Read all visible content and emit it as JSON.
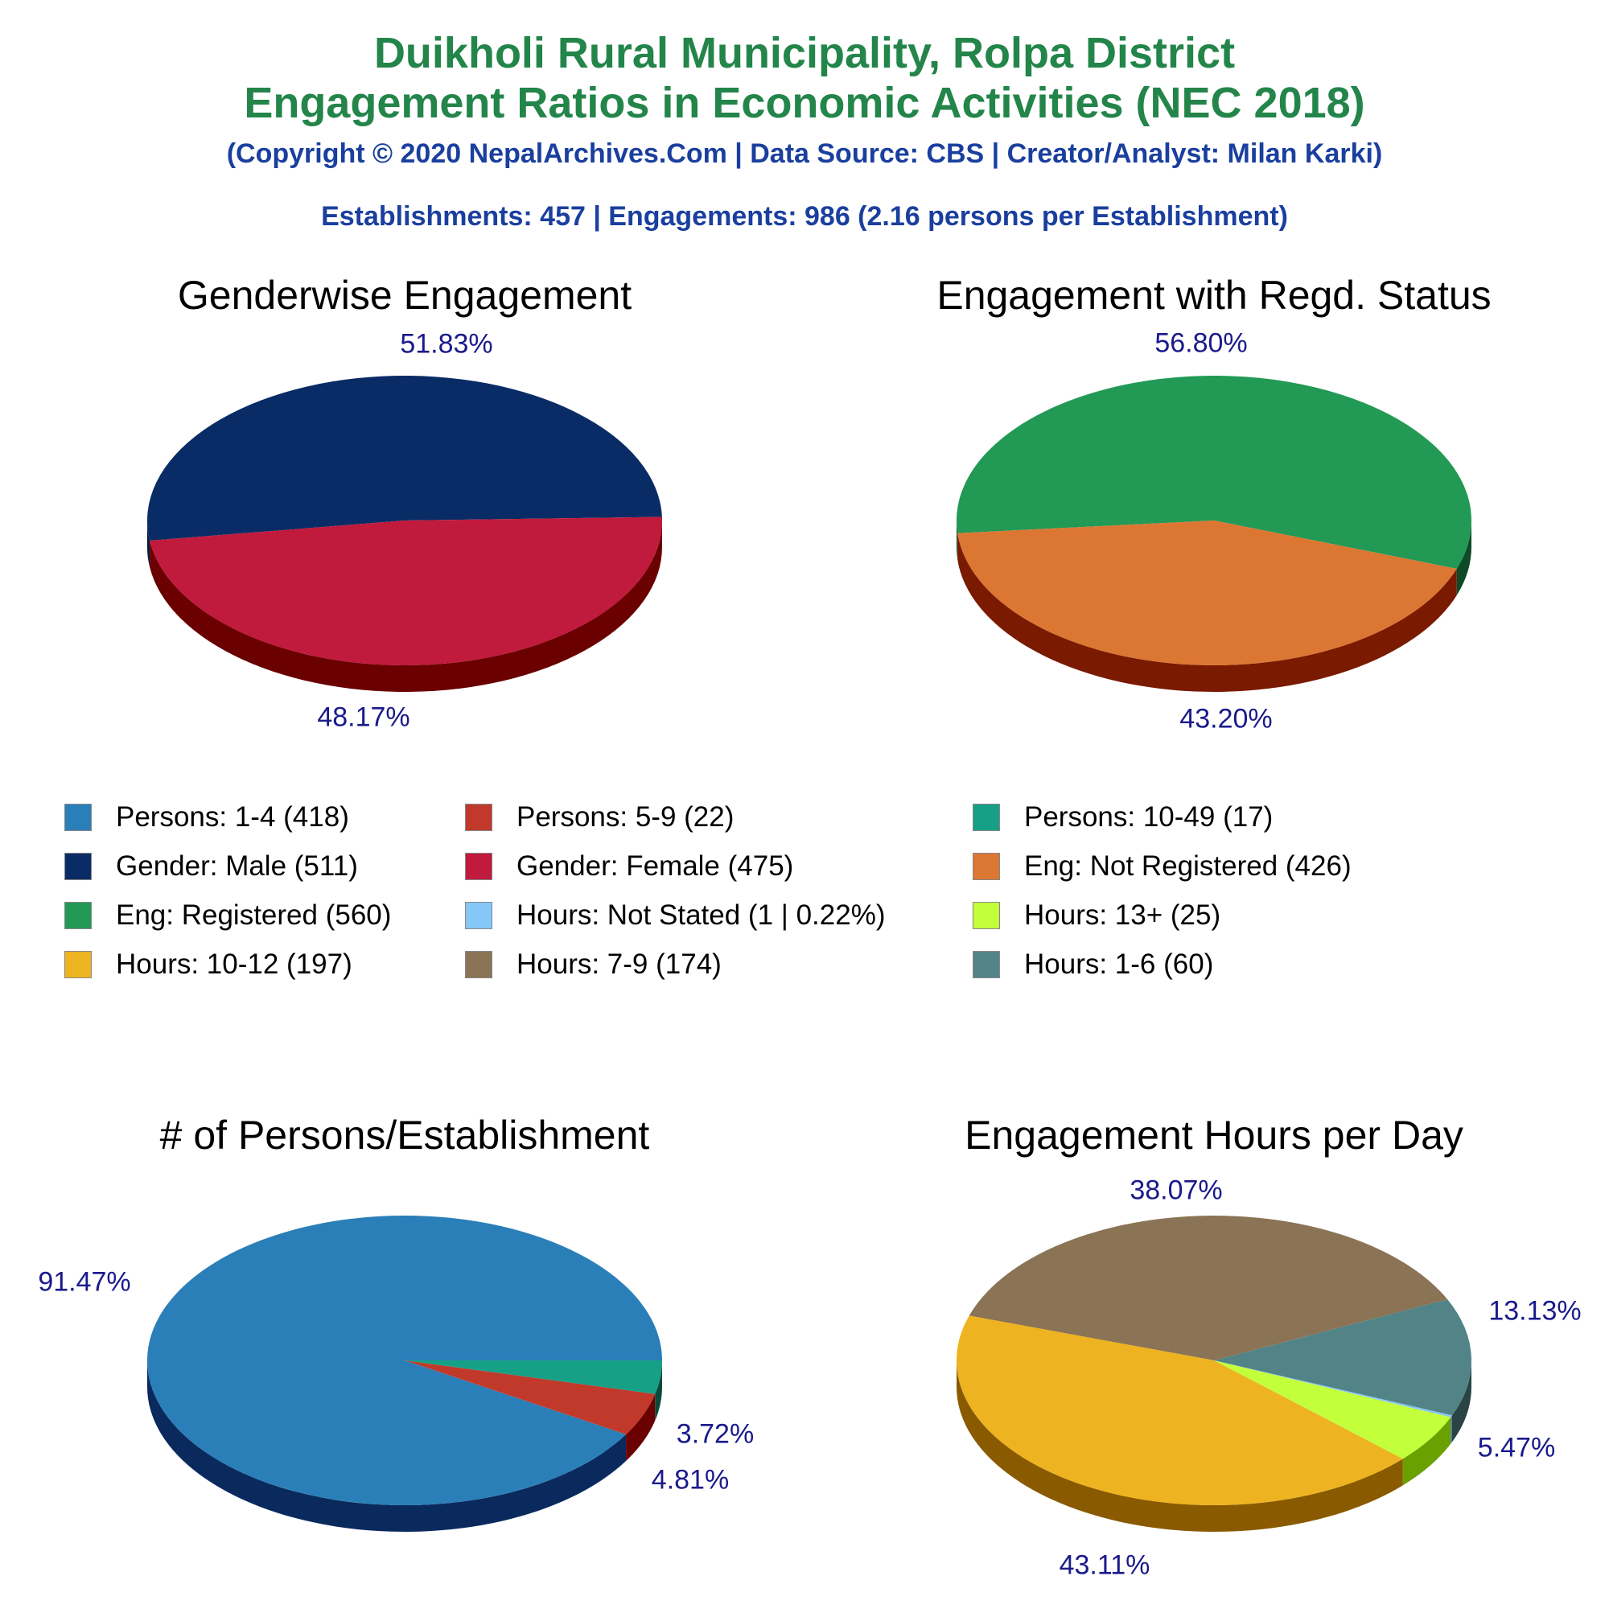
{
  "header": {
    "title_line1": "Duikholi Rural Municipality, Rolpa District",
    "title_line2": "Engagement Ratios in Economic Activities (NEC 2018)",
    "copyright": "(Copyright © 2020 NepalArchives.Com | Data Source: CBS | Creator/Analyst: Milan Karki)",
    "summary": "Establishments: 457 | Engagements: 986 (2.16 persons per Establishment)"
  },
  "legend": [
    {
      "label": "Persons: 1-4 (418)",
      "color": "#2a7fb8"
    },
    {
      "label": "Persons: 5-9 (22)",
      "color": "#c0392b"
    },
    {
      "label": "Persons: 10-49 (17)",
      "color": "#16a085"
    },
    {
      "label": "Gender: Male (511)",
      "color": "#0a2c66"
    },
    {
      "label": "Gender: Female (475)",
      "color": "#c01a3c"
    },
    {
      "label": "Eng: Not Registered (426)",
      "color": "#dc7633"
    },
    {
      "label": "Eng: Registered (560)",
      "color": "#229954"
    },
    {
      "label": "Hours: Not Stated (1 | 0.22%)",
      "color": "#85c8f8"
    },
    {
      "label": "Hours: 13+ (25)",
      "color": "#c3ff3a"
    },
    {
      "label": "Hours: 10-12 (197)",
      "color": "#eeb320"
    },
    {
      "label": "Hours: 7-9 (174)",
      "color": "#8b7355"
    },
    {
      "label": "Hours: 1-6 (60)",
      "color": "#528487"
    }
  ],
  "chart_data": [
    {
      "type": "pie",
      "title": "Genderwise Engagement",
      "categories": [
        "Gender: Male",
        "Gender: Female"
      ],
      "values": [
        511,
        475
      ],
      "percent_labels": [
        "51.83%",
        "48.17%"
      ],
      "colors": [
        "#0a2c66",
        "#c01a3c"
      ],
      "side_colors": [
        "#061a3d",
        "#6b0000"
      ]
    },
    {
      "type": "pie",
      "title": "Engagement with Regd. Status",
      "categories": [
        "Eng: Registered",
        "Eng: Not Registered"
      ],
      "values": [
        560,
        426
      ],
      "percent_labels": [
        "56.80%",
        "43.20%"
      ],
      "colors": [
        "#229954",
        "#dc7633"
      ],
      "side_colors": [
        "#0f4a28",
        "#7a1a00"
      ]
    },
    {
      "type": "pie",
      "title": "# of Persons/Establishment",
      "categories": [
        "Persons: 1-4",
        "Persons: 5-9",
        "Persons: 10-49"
      ],
      "values": [
        418,
        22,
        17
      ],
      "percent_labels": [
        "91.47%",
        "4.81%",
        "3.72%"
      ],
      "colors": [
        "#2a7fb8",
        "#c0392b",
        "#16a085"
      ],
      "side_colors": [
        "#0a2a5e",
        "#6b0000",
        "#0a4a3a"
      ]
    },
    {
      "type": "pie",
      "title": "Engagement Hours per Day",
      "categories": [
        "Hours: 7-9",
        "Hours: 1-6",
        "Hours: Not Stated",
        "Hours: 13+",
        "Hours: 10-12"
      ],
      "values": [
        174,
        60,
        1,
        25,
        197
      ],
      "percent_labels": [
        "38.07%",
        "13.13%",
        "",
        "5.47%",
        "43.11%"
      ],
      "colors": [
        "#8b7355",
        "#528487",
        "#85c8f8",
        "#c3ff3a",
        "#eeb320"
      ],
      "side_colors": [
        "#4a3a28",
        "#2a4446",
        "#4a7aa0",
        "#6aa000",
        "#8a5a00"
      ]
    }
  ]
}
